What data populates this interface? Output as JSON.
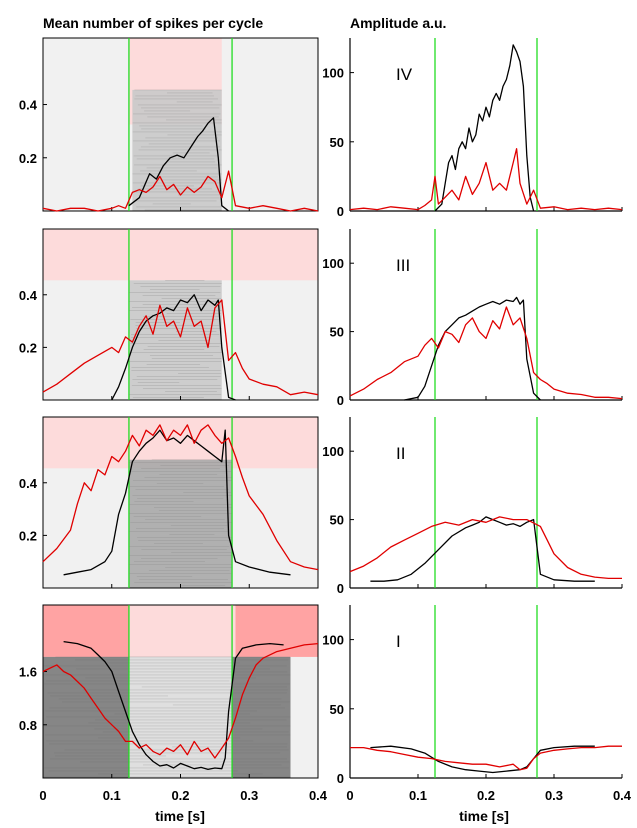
{
  "titles": {
    "left": "Mean number of spikes per cycle",
    "right": "Amplitude a.u."
  },
  "xlabel": "time [s]",
  "xticks": [
    "0",
    "0.1",
    "0.2",
    "0.3",
    "0.4"
  ],
  "colors": {
    "black": "#000000",
    "red": "#e00000",
    "green": "#22dd22"
  },
  "chart_data": [
    {
      "type": "line",
      "panel": "left",
      "row": 1,
      "xlim": [
        0,
        0.4
      ],
      "ylim": [
        0,
        0.65
      ],
      "yticks": [
        0.2,
        0.4
      ],
      "ytick_labels": [
        "0.2",
        "0.4"
      ],
      "vlines": [
        0.125,
        0.275
      ],
      "series": [
        {
          "color": "black",
          "x": [
            0.125,
            0.14,
            0.155,
            0.165,
            0.175,
            0.185,
            0.195,
            0.205,
            0.215,
            0.225,
            0.232,
            0.24,
            0.248,
            0.255,
            0.26,
            0.27
          ],
          "y": [
            0.02,
            0.05,
            0.14,
            0.12,
            0.17,
            0.2,
            0.21,
            0.2,
            0.24,
            0.28,
            0.3,
            0.33,
            0.35,
            0.2,
            0.02,
            0.0
          ]
        },
        {
          "color": "red",
          "x": [
            0,
            0.02,
            0.04,
            0.06,
            0.08,
            0.1,
            0.11,
            0.12,
            0.13,
            0.14,
            0.15,
            0.16,
            0.17,
            0.18,
            0.19,
            0.2,
            0.21,
            0.22,
            0.23,
            0.24,
            0.25,
            0.26,
            0.27,
            0.28,
            0.3,
            0.32,
            0.34,
            0.36,
            0.38,
            0.4
          ],
          "y": [
            0.01,
            0.0,
            0.01,
            0.01,
            0.0,
            0.01,
            0.02,
            0.01,
            0.07,
            0.08,
            0.07,
            0.09,
            0.13,
            0.08,
            0.1,
            0.06,
            0.09,
            0.07,
            0.09,
            0.13,
            0.11,
            0.05,
            0.15,
            0.02,
            0.01,
            0.02,
            0.01,
            0.0,
            0.01,
            0.0
          ]
        }
      ]
    },
    {
      "type": "line",
      "panel": "left",
      "row": 2,
      "xlim": [
        0,
        0.4
      ],
      "ylim": [
        0,
        0.65
      ],
      "yticks": [
        0.2,
        0.4
      ],
      "ytick_labels": [
        "0.2",
        "0.4"
      ],
      "vlines": [
        0.125,
        0.275
      ],
      "series": [
        {
          "color": "black",
          "x": [
            0.1,
            0.11,
            0.12,
            0.13,
            0.14,
            0.15,
            0.16,
            0.17,
            0.18,
            0.19,
            0.2,
            0.21,
            0.22,
            0.23,
            0.24,
            0.25,
            0.255,
            0.26,
            0.27,
            0.28
          ],
          "y": [
            0.0,
            0.05,
            0.12,
            0.2,
            0.26,
            0.3,
            0.32,
            0.33,
            0.35,
            0.34,
            0.38,
            0.37,
            0.4,
            0.34,
            0.38,
            0.36,
            0.38,
            0.2,
            0.01,
            0.0
          ]
        },
        {
          "color": "red",
          "x": [
            0,
            0.02,
            0.04,
            0.06,
            0.08,
            0.1,
            0.11,
            0.12,
            0.13,
            0.14,
            0.15,
            0.16,
            0.17,
            0.18,
            0.19,
            0.2,
            0.21,
            0.22,
            0.23,
            0.24,
            0.25,
            0.26,
            0.27,
            0.28,
            0.29,
            0.3,
            0.32,
            0.34,
            0.36,
            0.38,
            0.4
          ],
          "y": [
            0.03,
            0.06,
            0.1,
            0.14,
            0.17,
            0.2,
            0.18,
            0.24,
            0.22,
            0.28,
            0.32,
            0.25,
            0.36,
            0.28,
            0.3,
            0.24,
            0.35,
            0.28,
            0.3,
            0.2,
            0.35,
            0.38,
            0.15,
            0.18,
            0.12,
            0.08,
            0.06,
            0.05,
            0.02,
            0.03,
            0.02
          ]
        }
      ]
    },
    {
      "type": "line",
      "panel": "left",
      "row": 3,
      "xlim": [
        0,
        0.4
      ],
      "ylim": [
        0,
        0.65
      ],
      "yticks": [
        0.2,
        0.4
      ],
      "ytick_labels": [
        "0.2",
        "0.4"
      ],
      "vlines": [
        0.125,
        0.275
      ],
      "series": [
        {
          "color": "black",
          "x": [
            0.03,
            0.05,
            0.07,
            0.09,
            0.1,
            0.11,
            0.12,
            0.13,
            0.14,
            0.15,
            0.16,
            0.17,
            0.18,
            0.19,
            0.2,
            0.21,
            0.22,
            0.23,
            0.24,
            0.25,
            0.26,
            0.265,
            0.27,
            0.28,
            0.3,
            0.33,
            0.36
          ],
          "y": [
            0.05,
            0.06,
            0.07,
            0.1,
            0.14,
            0.28,
            0.36,
            0.48,
            0.52,
            0.55,
            0.57,
            0.6,
            0.56,
            0.57,
            0.55,
            0.58,
            0.56,
            0.54,
            0.52,
            0.5,
            0.48,
            0.6,
            0.2,
            0.1,
            0.08,
            0.06,
            0.05
          ]
        },
        {
          "color": "red",
          "x": [
            0,
            0.02,
            0.04,
            0.05,
            0.06,
            0.07,
            0.08,
            0.09,
            0.1,
            0.11,
            0.12,
            0.13,
            0.14,
            0.15,
            0.16,
            0.17,
            0.18,
            0.19,
            0.2,
            0.21,
            0.22,
            0.23,
            0.24,
            0.25,
            0.26,
            0.27,
            0.28,
            0.29,
            0.3,
            0.32,
            0.34,
            0.36,
            0.38,
            0.4
          ],
          "y": [
            0.1,
            0.15,
            0.22,
            0.32,
            0.4,
            0.37,
            0.45,
            0.43,
            0.5,
            0.48,
            0.52,
            0.58,
            0.54,
            0.6,
            0.58,
            0.62,
            0.56,
            0.6,
            0.58,
            0.62,
            0.55,
            0.6,
            0.62,
            0.58,
            0.55,
            0.57,
            0.5,
            0.42,
            0.35,
            0.28,
            0.18,
            0.1,
            0.08,
            0.07
          ]
        }
      ]
    },
    {
      "type": "line",
      "panel": "left",
      "row": 4,
      "xlim": [
        0,
        0.4
      ],
      "ylim": [
        0,
        2.6
      ],
      "yticks": [
        0.8,
        1.6
      ],
      "ytick_labels": [
        "0.8",
        "1.6"
      ],
      "vlines": [
        0.125,
        0.275
      ],
      "series": [
        {
          "color": "black",
          "x": [
            0.03,
            0.05,
            0.07,
            0.08,
            0.09,
            0.1,
            0.11,
            0.12,
            0.13,
            0.14,
            0.15,
            0.16,
            0.17,
            0.18,
            0.19,
            0.2,
            0.21,
            0.22,
            0.23,
            0.24,
            0.25,
            0.26,
            0.265,
            0.27,
            0.28,
            0.29,
            0.31,
            0.33,
            0.35
          ],
          "y": [
            2.05,
            2.02,
            1.95,
            1.85,
            1.75,
            1.6,
            1.3,
            1.0,
            0.7,
            0.5,
            0.35,
            0.25,
            0.18,
            0.2,
            0.15,
            0.22,
            0.18,
            0.14,
            0.16,
            0.13,
            0.15,
            0.14,
            0.3,
            1.0,
            1.8,
            1.95,
            2.0,
            2.02,
            2.0
          ]
        },
        {
          "color": "red",
          "x": [
            0,
            0.02,
            0.03,
            0.04,
            0.05,
            0.06,
            0.07,
            0.08,
            0.09,
            0.1,
            0.11,
            0.12,
            0.13,
            0.14,
            0.15,
            0.16,
            0.17,
            0.18,
            0.19,
            0.2,
            0.21,
            0.22,
            0.23,
            0.24,
            0.25,
            0.26,
            0.27,
            0.28,
            0.29,
            0.3,
            0.31,
            0.32,
            0.34,
            0.36,
            0.38,
            0.4
          ],
          "y": [
            1.6,
            1.7,
            1.6,
            1.55,
            1.45,
            1.35,
            1.2,
            1.05,
            0.9,
            0.8,
            0.7,
            0.55,
            0.55,
            0.45,
            0.5,
            0.4,
            0.35,
            0.45,
            0.4,
            0.5,
            0.35,
            0.55,
            0.4,
            0.45,
            0.3,
            0.45,
            0.6,
            0.9,
            1.25,
            1.5,
            1.7,
            1.8,
            1.9,
            1.95,
            2.0,
            2.02
          ]
        }
      ]
    },
    {
      "type": "line",
      "panel": "right",
      "row": 1,
      "label": "IV",
      "xlim": [
        0,
        0.4
      ],
      "ylim": [
        0,
        125
      ],
      "yticks": [
        0,
        50,
        100
      ],
      "ytick_labels": [
        "0",
        "50",
        "100"
      ],
      "vlines": [
        0.125,
        0.275
      ],
      "series": [
        {
          "color": "black",
          "x": [
            0.125,
            0.135,
            0.14,
            0.145,
            0.15,
            0.155,
            0.16,
            0.165,
            0.17,
            0.175,
            0.18,
            0.185,
            0.19,
            0.195,
            0.2,
            0.205,
            0.21,
            0.215,
            0.22,
            0.225,
            0.23,
            0.235,
            0.24,
            0.245,
            0.25,
            0.255,
            0.26,
            0.265,
            0.27
          ],
          "y": [
            0,
            5,
            20,
            35,
            40,
            30,
            45,
            50,
            45,
            60,
            50,
            55,
            70,
            65,
            75,
            68,
            80,
            85,
            80,
            90,
            95,
            105,
            120,
            115,
            108,
            90,
            40,
            10,
            0
          ]
        },
        {
          "color": "red",
          "x": [
            0,
            0.02,
            0.04,
            0.06,
            0.08,
            0.1,
            0.11,
            0.12,
            0.125,
            0.13,
            0.14,
            0.15,
            0.16,
            0.17,
            0.18,
            0.19,
            0.2,
            0.21,
            0.22,
            0.23,
            0.24,
            0.245,
            0.25,
            0.26,
            0.27,
            0.28,
            0.3,
            0.32,
            0.34,
            0.36,
            0.38,
            0.4
          ],
          "y": [
            1,
            2,
            1,
            3,
            2,
            1,
            4,
            8,
            25,
            5,
            10,
            15,
            8,
            25,
            12,
            20,
            35,
            15,
            20,
            15,
            35,
            45,
            20,
            5,
            15,
            2,
            3,
            1,
            2,
            1,
            2,
            1
          ]
        }
      ]
    },
    {
      "type": "line",
      "panel": "right",
      "row": 2,
      "label": "III",
      "xlim": [
        0,
        0.4
      ],
      "ylim": [
        0,
        125
      ],
      "yticks": [
        0,
        50,
        100
      ],
      "ytick_labels": [
        "0",
        "50",
        "100"
      ],
      "vlines": [
        0.125,
        0.275
      ],
      "series": [
        {
          "color": "black",
          "x": [
            0.08,
            0.1,
            0.11,
            0.12,
            0.13,
            0.14,
            0.15,
            0.16,
            0.17,
            0.18,
            0.19,
            0.2,
            0.21,
            0.22,
            0.23,
            0.24,
            0.245,
            0.25,
            0.255,
            0.26,
            0.27,
            0.28
          ],
          "y": [
            0,
            2,
            10,
            25,
            40,
            50,
            55,
            60,
            62,
            65,
            68,
            70,
            72,
            70,
            73,
            72,
            75,
            70,
            73,
            30,
            5,
            0
          ]
        },
        {
          "color": "red",
          "x": [
            0,
            0.02,
            0.04,
            0.06,
            0.08,
            0.1,
            0.11,
            0.12,
            0.13,
            0.14,
            0.15,
            0.16,
            0.17,
            0.18,
            0.19,
            0.2,
            0.21,
            0.22,
            0.23,
            0.24,
            0.25,
            0.26,
            0.27,
            0.28,
            0.29,
            0.3,
            0.32,
            0.34,
            0.36,
            0.38,
            0.4
          ],
          "y": [
            3,
            8,
            15,
            20,
            28,
            32,
            40,
            45,
            38,
            50,
            48,
            42,
            55,
            60,
            50,
            45,
            58,
            52,
            68,
            55,
            60,
            45,
            20,
            15,
            12,
            8,
            5,
            4,
            2,
            2,
            1
          ]
        }
      ]
    },
    {
      "type": "line",
      "panel": "right",
      "row": 3,
      "label": "II",
      "xlim": [
        0,
        0.4
      ],
      "ylim": [
        0,
        125
      ],
      "yticks": [
        0,
        50,
        100
      ],
      "ytick_labels": [
        "0",
        "50",
        "100"
      ],
      "vlines": [
        0.125,
        0.275
      ],
      "series": [
        {
          "color": "black",
          "x": [
            0.03,
            0.05,
            0.07,
            0.09,
            0.11,
            0.13,
            0.15,
            0.17,
            0.18,
            0.19,
            0.2,
            0.21,
            0.22,
            0.23,
            0.24,
            0.25,
            0.26,
            0.27,
            0.275,
            0.28,
            0.3,
            0.33,
            0.36
          ],
          "y": [
            5,
            5,
            6,
            10,
            18,
            28,
            38,
            44,
            46,
            48,
            52,
            50,
            48,
            46,
            47,
            45,
            48,
            50,
            30,
            10,
            6,
            5,
            5
          ]
        },
        {
          "color": "red",
          "x": [
            0,
            0.02,
            0.04,
            0.06,
            0.08,
            0.1,
            0.12,
            0.14,
            0.16,
            0.18,
            0.2,
            0.22,
            0.24,
            0.26,
            0.28,
            0.29,
            0.3,
            0.32,
            0.34,
            0.36,
            0.38,
            0.4
          ],
          "y": [
            12,
            16,
            22,
            30,
            35,
            40,
            45,
            48,
            46,
            50,
            48,
            52,
            50,
            50,
            45,
            35,
            25,
            15,
            10,
            8,
            7,
            7
          ]
        }
      ]
    },
    {
      "type": "line",
      "panel": "right",
      "row": 4,
      "label": "I",
      "xlim": [
        0,
        0.4
      ],
      "ylim": [
        0,
        125
      ],
      "yticks": [
        0,
        50,
        100
      ],
      "ytick_labels": [
        "0",
        "50",
        "100"
      ],
      "vlines": [
        0.125,
        0.275
      ],
      "series": [
        {
          "color": "black",
          "x": [
            0.03,
            0.06,
            0.09,
            0.11,
            0.13,
            0.15,
            0.17,
            0.19,
            0.21,
            0.23,
            0.25,
            0.26,
            0.27,
            0.28,
            0.3,
            0.33,
            0.36
          ],
          "y": [
            22,
            23,
            21,
            18,
            12,
            8,
            6,
            5,
            4,
            5,
            6,
            8,
            14,
            20,
            22,
            23,
            23
          ]
        },
        {
          "color": "red",
          "x": [
            0,
            0.02,
            0.04,
            0.06,
            0.08,
            0.1,
            0.12,
            0.14,
            0.16,
            0.18,
            0.2,
            0.22,
            0.24,
            0.25,
            0.26,
            0.27,
            0.28,
            0.3,
            0.32,
            0.34,
            0.36,
            0.38,
            0.4
          ],
          "y": [
            22,
            22,
            20,
            19,
            17,
            15,
            14,
            12,
            11,
            10,
            10,
            8,
            10,
            6,
            7,
            14,
            18,
            20,
            21,
            22,
            22,
            23,
            23
          ]
        }
      ]
    }
  ]
}
